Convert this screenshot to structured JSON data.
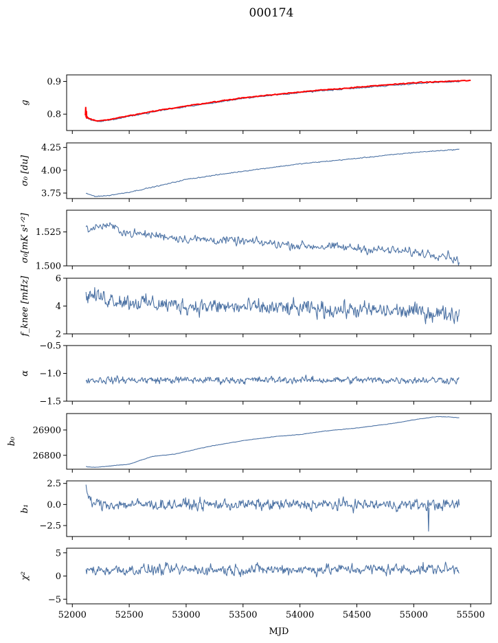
{
  "title": "000174",
  "chart_data": {
    "type": "line",
    "shared_x": {
      "label": "MJD",
      "range": [
        51950,
        55680
      ],
      "ticks": [
        52000,
        52500,
        53000,
        53500,
        54000,
        54500,
        55000,
        55500
      ],
      "tick_labels": [
        "52000",
        "52500",
        "53000",
        "53500",
        "54000",
        "54500",
        "55000",
        "55500"
      ],
      "data_start": 52120,
      "data_end": 55400
    },
    "panels": [
      {
        "id": "g",
        "ylabel": "g",
        "ylim": [
          0.75,
          0.92
        ],
        "yticks": [
          0.8,
          0.9
        ],
        "ytick_labels": [
          "0.8",
          "0.9"
        ],
        "series": [
          {
            "name": "g",
            "color": "#4c72a4",
            "trend": [
              [
                52120,
                0.79
              ],
              [
                52160,
                0.782
              ],
              [
                52220,
                0.777
              ],
              [
                52300,
                0.78
              ],
              [
                52500,
                0.793
              ],
              [
                52800,
                0.812
              ],
              [
                53000,
                0.823
              ],
              [
                53500,
                0.848
              ],
              [
                54000,
                0.866
              ],
              [
                54500,
                0.88
              ],
              [
                55000,
                0.893
              ],
              [
                55400,
                0.9
              ]
            ],
            "noise": 0.0015,
            "points": 500
          },
          {
            "name": "g model",
            "color": "#ff0000",
            "trend": [
              [
                52100,
                0.8
              ],
              [
                52150,
                0.786
              ],
              [
                52220,
                0.779
              ],
              [
                52300,
                0.782
              ],
              [
                52500,
                0.795
              ],
              [
                52800,
                0.814
              ],
              [
                53000,
                0.825
              ],
              [
                53500,
                0.85
              ],
              [
                54000,
                0.868
              ],
              [
                54500,
                0.882
              ],
              [
                55000,
                0.896
              ],
              [
                55500,
                0.903
              ]
            ],
            "noise": 0.001,
            "points": 500,
            "spike": [
              [
                52115,
                0.796
              ],
              [
                52118,
                0.822
              ],
              [
                52121,
                0.79
              ],
              [
                52124,
                0.81
              ],
              [
                52127,
                0.786
              ]
            ]
          }
        ]
      },
      {
        "id": "sigma0-du",
        "ylabel": "σ₀ [du]",
        "ylim": [
          3.69,
          4.3
        ],
        "yticks": [
          3.75,
          4.0,
          4.25
        ],
        "ytick_labels": [
          "3.75",
          "4.00",
          "4.25"
        ],
        "series": [
          {
            "name": "sigma0 du",
            "color": "#4c72a4",
            "trend": [
              [
                52120,
                3.745
              ],
              [
                52200,
                3.715
              ],
              [
                52300,
                3.72
              ],
              [
                52500,
                3.76
              ],
              [
                52800,
                3.84
              ],
              [
                53000,
                3.9
              ],
              [
                53500,
                3.99
              ],
              [
                54000,
                4.07
              ],
              [
                54500,
                4.13
              ],
              [
                55000,
                4.195
              ],
              [
                55400,
                4.23
              ]
            ],
            "noise": 0.004,
            "points": 500
          }
        ]
      },
      {
        "id": "sigma0-mk",
        "ylabel": "σ₀[mK s¹ᐟ²]",
        "ylim": [
          1.5,
          1.541
        ],
        "yticks": [
          1.5,
          1.525
        ],
        "ytick_labels": [
          "1.500",
          "1.525"
        ],
        "series": [
          {
            "name": "sigma0 mK",
            "color": "#4c72a4",
            "trend": [
              [
                52120,
                1.527
              ],
              [
                52300,
                1.53
              ],
              [
                52500,
                1.524
              ],
              [
                52800,
                1.522
              ],
              [
                53000,
                1.52
              ],
              [
                53500,
                1.518
              ],
              [
                54000,
                1.515
              ],
              [
                54500,
                1.513
              ],
              [
                55000,
                1.51
              ],
              [
                55300,
                1.508
              ],
              [
                55400,
                1.503
              ]
            ],
            "noise": 0.0025,
            "points": 500
          }
        ]
      },
      {
        "id": "fknee",
        "ylabel": "f_knee [mHz]",
        "ylim": [
          2,
          6
        ],
        "yticks": [
          2,
          4,
          6
        ],
        "ytick_labels": [
          "2",
          "4",
          "6"
        ],
        "series": [
          {
            "name": "fknee",
            "color": "#4c72a4",
            "trend": [
              [
                52120,
                4.8
              ],
              [
                52500,
                4.3
              ],
              [
                53000,
                4.0
              ],
              [
                54000,
                3.8
              ],
              [
                55000,
                3.6
              ],
              [
                55400,
                3.4
              ]
            ],
            "noise": 0.45,
            "points": 600
          }
        ]
      },
      {
        "id": "alpha",
        "ylabel": "α",
        "ylim": [
          -1.5,
          -0.5
        ],
        "yticks": [
          -1.5,
          -1.0,
          -0.5
        ],
        "ytick_labels": [
          "−1.5",
          "−1.0",
          "−0.5"
        ],
        "series": [
          {
            "name": "alpha",
            "color": "#4c72a4",
            "trend": [
              [
                52120,
                -1.12
              ],
              [
                55400,
                -1.12
              ]
            ],
            "noise": 0.05,
            "points": 600
          }
        ]
      },
      {
        "id": "b0",
        "ylabel": "b₀",
        "ylim": [
          26745,
          26965
        ],
        "yticks": [
          26800,
          26900
        ],
        "ytick_labels": [
          "26800",
          "26900"
        ],
        "series": [
          {
            "name": "b0",
            "color": "#4c72a4",
            "trend": [
              [
                52120,
                26755
              ],
              [
                52200,
                26752
              ],
              [
                52500,
                26765
              ],
              [
                52700,
                26795
              ],
              [
                52900,
                26805
              ],
              [
                53000,
                26815
              ],
              [
                53200,
                26835
              ],
              [
                53500,
                26858
              ],
              [
                53800,
                26875
              ],
              [
                54000,
                26882
              ],
              [
                54200,
                26895
              ],
              [
                54500,
                26908
              ],
              [
                54800,
                26925
              ],
              [
                55000,
                26940
              ],
              [
                55200,
                26953
              ],
              [
                55300,
                26952
              ],
              [
                55400,
                26948
              ]
            ],
            "noise": 0.7,
            "points": 500
          }
        ]
      },
      {
        "id": "b1",
        "ylabel": "b₁",
        "ylim": [
          -3.8,
          2.8
        ],
        "yticks": [
          -2.5,
          0.0,
          2.5
        ],
        "ytick_labels": [
          "−2.5",
          "0.0",
          "2.5"
        ],
        "series": [
          {
            "name": "b1",
            "color": "#4c72a4",
            "trend": [
              [
                52120,
                1.8
              ],
              [
                52160,
                0.3
              ],
              [
                52250,
                0.0
              ],
              [
                55400,
                -0.05
              ]
            ],
            "noise": 0.5,
            "points": 600,
            "spike": [
              [
                55125,
                -0.3
              ],
              [
                55130,
                -3.2
              ],
              [
                55135,
                -0.4
              ]
            ]
          }
        ]
      },
      {
        "id": "chi2",
        "ylabel": "χ²",
        "ylim": [
          -6,
          6
        ],
        "yticks": [
          -5,
          0,
          5
        ],
        "ytick_labels": [
          "−5",
          "0",
          "5"
        ],
        "series": [
          {
            "name": "chi2",
            "color": "#4c72a4",
            "trend": [
              [
                52120,
                1.3
              ],
              [
                55400,
                1.5
              ]
            ],
            "noise": 0.9,
            "points": 600
          }
        ]
      }
    ]
  }
}
